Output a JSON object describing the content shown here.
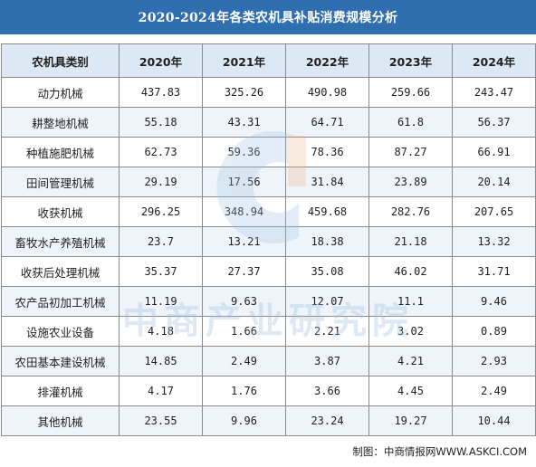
{
  "title": "2020-2024年各类农机具补贴消费规模分析",
  "watermark_text": "中商产业研究院",
  "source": "制图：中商情报网WWW.ASKCI.COM",
  "colors": {
    "header_bar": "#2f6fb0",
    "table_header_bg": "#dce9f5",
    "stripe_bg": "#eef4fa",
    "watermark_blue": "#9fc1e3",
    "watermark_orange": "#f4b183"
  },
  "chart_data": {
    "type": "table",
    "title": "2020-2024年各类农机具补贴消费规模分析",
    "columns": [
      "农机具类别",
      "2020年",
      "2021年",
      "2022年",
      "2023年",
      "2024年"
    ],
    "rows": [
      [
        "动力机械",
        "437.83",
        "325.26",
        "490.98",
        "259.66",
        "243.47"
      ],
      [
        "耕整地机械",
        "55.18",
        "43.31",
        "64.71",
        "61.8",
        "56.37"
      ],
      [
        "种植施肥机械",
        "62.73",
        "59.36",
        "78.36",
        "87.27",
        "66.91"
      ],
      [
        "田间管理机械",
        "29.19",
        "17.56",
        "31.84",
        "23.89",
        "20.14"
      ],
      [
        "收获机械",
        "296.25",
        "348.94",
        "459.68",
        "282.76",
        "207.65"
      ],
      [
        "畜牧水产养殖机械",
        "23.7",
        "13.21",
        "18.38",
        "21.18",
        "13.32"
      ],
      [
        "收获后处理机械",
        "35.37",
        "27.37",
        "35.08",
        "46.02",
        "31.71"
      ],
      [
        "农产品初加工机械",
        "11.19",
        "9.63",
        "12.07",
        "11.1",
        "9.46"
      ],
      [
        "设施农业设备",
        "4.18",
        "1.66",
        "2.21",
        "3.02",
        "0.89"
      ],
      [
        "农田基本建设机械",
        "14.85",
        "2.49",
        "3.87",
        "4.21",
        "2.93"
      ],
      [
        "排灌机械",
        "4.17",
        "1.76",
        "3.66",
        "4.45",
        "2.49"
      ],
      [
        "其他机械",
        "23.55",
        "9.96",
        "23.24",
        "19.27",
        "10.44"
      ]
    ]
  }
}
